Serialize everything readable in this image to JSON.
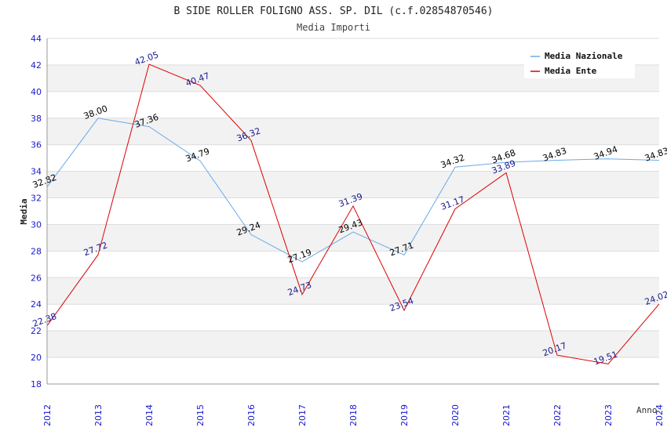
{
  "chart_data": {
    "type": "line",
    "title": "B SIDE ROLLER FOLIGNO ASS. SP. DIL (c.f.02854870546)",
    "subtitle": "Media Importi",
    "xlabel": "Anno",
    "ylabel": "Media",
    "ylim": [
      18,
      44
    ],
    "yticks": [
      18,
      20,
      22,
      24,
      26,
      28,
      30,
      32,
      34,
      36,
      38,
      40,
      42,
      44
    ],
    "categories": [
      "2012",
      "2013",
      "2014",
      "2015",
      "2016",
      "2017",
      "2018",
      "2019",
      "2020",
      "2021",
      "2022",
      "2023",
      "2024"
    ],
    "grid": "horizontal bands",
    "legend_position": "top-right",
    "series": [
      {
        "name": "Media Nazionale",
        "color": "#6aaae8",
        "label_color": "#000000",
        "values": [
          32.82,
          38.0,
          37.36,
          34.79,
          29.24,
          27.19,
          29.43,
          27.71,
          34.32,
          34.68,
          34.83,
          34.94,
          34.83
        ],
        "labels": [
          "32.82",
          "38.00",
          "37.36",
          "34.79",
          "29.24",
          "27.19",
          "29.43",
          "27.71",
          "34.32",
          "34.68",
          "34.83",
          "34.94",
          "34.83"
        ]
      },
      {
        "name": "Media Ente",
        "color": "#dd0000",
        "label_color": "#1a1a8c",
        "values": [
          22.38,
          27.72,
          42.05,
          40.47,
          36.32,
          24.73,
          31.39,
          23.54,
          31.17,
          33.89,
          20.17,
          19.51,
          24.02
        ],
        "labels": [
          "22.38",
          "27.72",
          "42.05",
          "40.47",
          "36.32",
          "24.73",
          "31.39",
          "23.54",
          "31.17",
          "33.89",
          "20.17",
          "19.51",
          "24.02"
        ]
      }
    ]
  }
}
